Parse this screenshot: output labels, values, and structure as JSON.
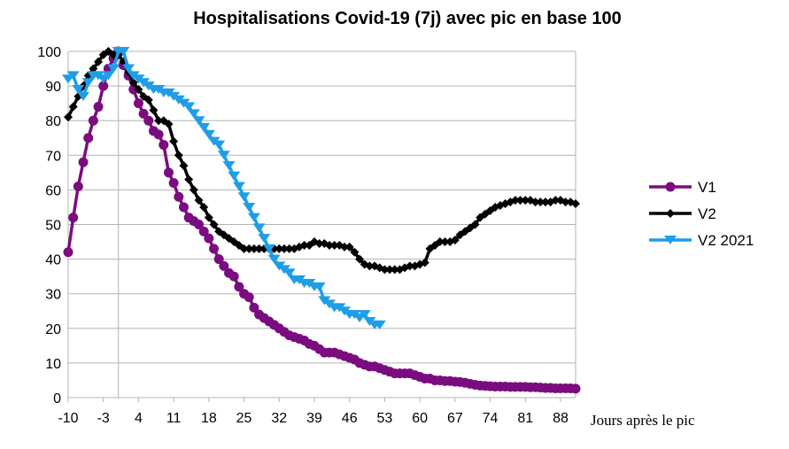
{
  "chart_data": {
    "type": "line",
    "title": "Hospitalisations Covid-19 (7j) avec pic en base 100",
    "xlabel": "Jours après le pic",
    "ylabel": "",
    "xlim": [
      -10,
      91
    ],
    "ylim": [
      0,
      100
    ],
    "x_ticks": [
      -10,
      -3,
      4,
      11,
      18,
      25,
      32,
      39,
      46,
      53,
      60,
      67,
      74,
      81,
      88
    ],
    "y_ticks": [
      0,
      10,
      20,
      30,
      40,
      50,
      60,
      70,
      80,
      90,
      100
    ],
    "grid": true,
    "legend_position": "right",
    "series": [
      {
        "name": "V1",
        "color": "#7b0c7f",
        "marker": "circle",
        "x": [
          -10,
          -9,
          -8,
          -7,
          -6,
          -5,
          -4,
          -3,
          -2,
          -1,
          0,
          1,
          2,
          3,
          4,
          5,
          6,
          7,
          8,
          9,
          10,
          11,
          12,
          13,
          14,
          15,
          16,
          17,
          18,
          19,
          20,
          21,
          22,
          23,
          24,
          25,
          26,
          27,
          28,
          29,
          30,
          31,
          32,
          33,
          34,
          35,
          36,
          37,
          38,
          39,
          40,
          41,
          42,
          43,
          44,
          45,
          46,
          47,
          48,
          49,
          50,
          51,
          52,
          53,
          54,
          55,
          56,
          57,
          58,
          59,
          60,
          61,
          62,
          63,
          64,
          65,
          66,
          67,
          68,
          69,
          70,
          71,
          72,
          73,
          74,
          75,
          76,
          77,
          78,
          79,
          80,
          81,
          82,
          83,
          84,
          85,
          86,
          87,
          88,
          89,
          90,
          91
        ],
        "values": [
          42,
          52,
          61,
          68,
          75,
          80,
          84,
          90,
          95,
          98,
          100,
          96,
          93,
          89,
          85,
          82,
          80,
          77,
          76,
          73,
          65,
          62,
          58,
          55,
          52,
          51,
          50,
          48,
          46,
          43,
          40,
          38,
          36,
          35,
          32,
          30,
          29,
          26,
          24,
          23,
          22,
          21,
          20,
          19,
          18,
          17.5,
          17,
          16.5,
          15.5,
          15,
          14,
          13,
          13,
          13,
          12.5,
          12,
          11.5,
          11,
          10,
          9.5,
          9,
          9,
          8.5,
          8,
          7.5,
          7,
          7,
          7,
          7,
          6.5,
          6,
          5.5,
          5.5,
          5,
          5,
          4.8,
          4.8,
          4.6,
          4.5,
          4.3,
          4,
          3.7,
          3.5,
          3.4,
          3.3,
          3.2,
          3.2,
          3.2,
          3.1,
          3.1,
          3.1,
          3.1,
          3,
          3,
          2.9,
          2.8,
          2.8,
          2.7,
          2.7,
          2.7,
          2.7,
          2.6
        ]
      },
      {
        "name": "V2",
        "color": "#000000",
        "marker": "diamond",
        "x": [
          -10,
          -9,
          -8,
          -7,
          -6,
          -5,
          -4,
          -3,
          -2,
          -1,
          0,
          1,
          2,
          3,
          4,
          5,
          6,
          7,
          8,
          9,
          10,
          11,
          12,
          13,
          14,
          15,
          16,
          17,
          18,
          19,
          20,
          21,
          22,
          23,
          24,
          25,
          26,
          27,
          28,
          29,
          30,
          31,
          32,
          33,
          34,
          35,
          36,
          37,
          38,
          39,
          40,
          41,
          42,
          43,
          44,
          45,
          46,
          47,
          48,
          49,
          50,
          51,
          52,
          53,
          54,
          55,
          56,
          57,
          58,
          59,
          60,
          61,
          62,
          63,
          64,
          65,
          66,
          67,
          68,
          69,
          70,
          71,
          72,
          73,
          74,
          75,
          76,
          77,
          78,
          79,
          80,
          81,
          82,
          83,
          84,
          85,
          86,
          87,
          88,
          89,
          90,
          91
        ],
        "values": [
          81,
          84,
          87,
          90,
          93,
          95,
          97,
          99,
          100,
          99,
          99,
          97,
          94,
          91,
          89,
          87,
          86,
          83,
          80,
          80,
          79,
          74,
          70,
          67,
          63,
          60,
          57,
          55,
          52,
          50,
          48,
          47,
          46,
          45,
          44,
          43,
          43,
          43,
          43,
          43,
          43,
          43,
          43,
          43,
          43,
          43,
          43.5,
          44,
          44,
          45,
          44.5,
          44.5,
          44,
          44,
          44,
          43.5,
          43.5,
          42,
          40,
          38.5,
          38,
          38,
          37.5,
          37,
          37,
          37,
          37,
          37.5,
          38,
          38,
          38.5,
          39,
          43,
          44,
          45,
          45,
          45,
          45.5,
          47,
          48,
          49,
          50,
          52,
          53,
          54,
          55,
          55.5,
          56,
          56.5,
          57,
          57,
          57,
          57,
          56.5,
          56.5,
          56.5,
          56.5,
          57,
          57,
          56.5,
          56.5,
          56
        ]
      },
      {
        "name": "V2 2021",
        "color": "#1e9de8",
        "marker": "triangle-down",
        "x": [
          -10,
          -9,
          -8,
          -7,
          -6,
          -5,
          -4,
          -3,
          -2,
          -1,
          0,
          1,
          2,
          3,
          4,
          5,
          6,
          7,
          8,
          9,
          10,
          11,
          12,
          13,
          14,
          15,
          16,
          17,
          18,
          19,
          20,
          21,
          22,
          23,
          24,
          25,
          26,
          27,
          28,
          29,
          30,
          31,
          32,
          33,
          34,
          35,
          36,
          37,
          38,
          39,
          40,
          41,
          42,
          43,
          44,
          45,
          46,
          47,
          48,
          49,
          50,
          51,
          52
        ],
        "values": [
          92,
          93,
          89,
          87,
          91,
          93,
          93,
          92,
          93,
          95,
          100,
          100,
          95,
          93,
          92,
          91,
          90,
          89,
          89,
          88,
          88,
          87,
          86,
          85,
          84,
          82,
          80,
          78,
          76,
          74,
          73,
          70,
          67,
          64,
          61,
          58,
          55,
          52,
          49,
          46,
          43,
          40,
          38,
          37,
          36,
          34,
          34,
          33,
          33,
          32,
          32,
          28,
          27,
          26,
          26,
          25,
          24,
          24,
          23,
          24,
          22,
          21,
          21
        ]
      }
    ]
  }
}
